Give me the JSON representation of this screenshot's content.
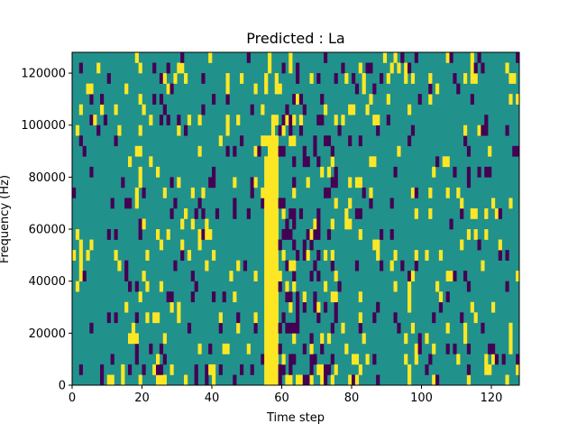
{
  "chart_data": {
    "type": "heatmap",
    "title": "Predicted : La",
    "xlabel": "Time step",
    "ylabel": "Frequency (Hz)",
    "xlim": [
      0,
      128
    ],
    "ylim": [
      0,
      128000
    ],
    "xticks": [
      0,
      20,
      40,
      60,
      80,
      100,
      120
    ],
    "xtick_labels": [
      "0",
      "20",
      "40",
      "60",
      "80",
      "100",
      "120"
    ],
    "yticks": [
      0,
      20000,
      40000,
      60000,
      80000,
      100000,
      120000
    ],
    "ytick_labels": [
      "0",
      "20000",
      "40000",
      "60000",
      "80000",
      "100000",
      "120000"
    ],
    "grid": false,
    "colormap": "viridis",
    "colors": {
      "low": "#440154",
      "mid": "#21918c",
      "high": "#fde725"
    },
    "background_value": "mid",
    "rows": 32,
    "cols": 128,
    "bright_band": {
      "x_start": 55,
      "x_end": 59
    },
    "seed": 20240607
  }
}
